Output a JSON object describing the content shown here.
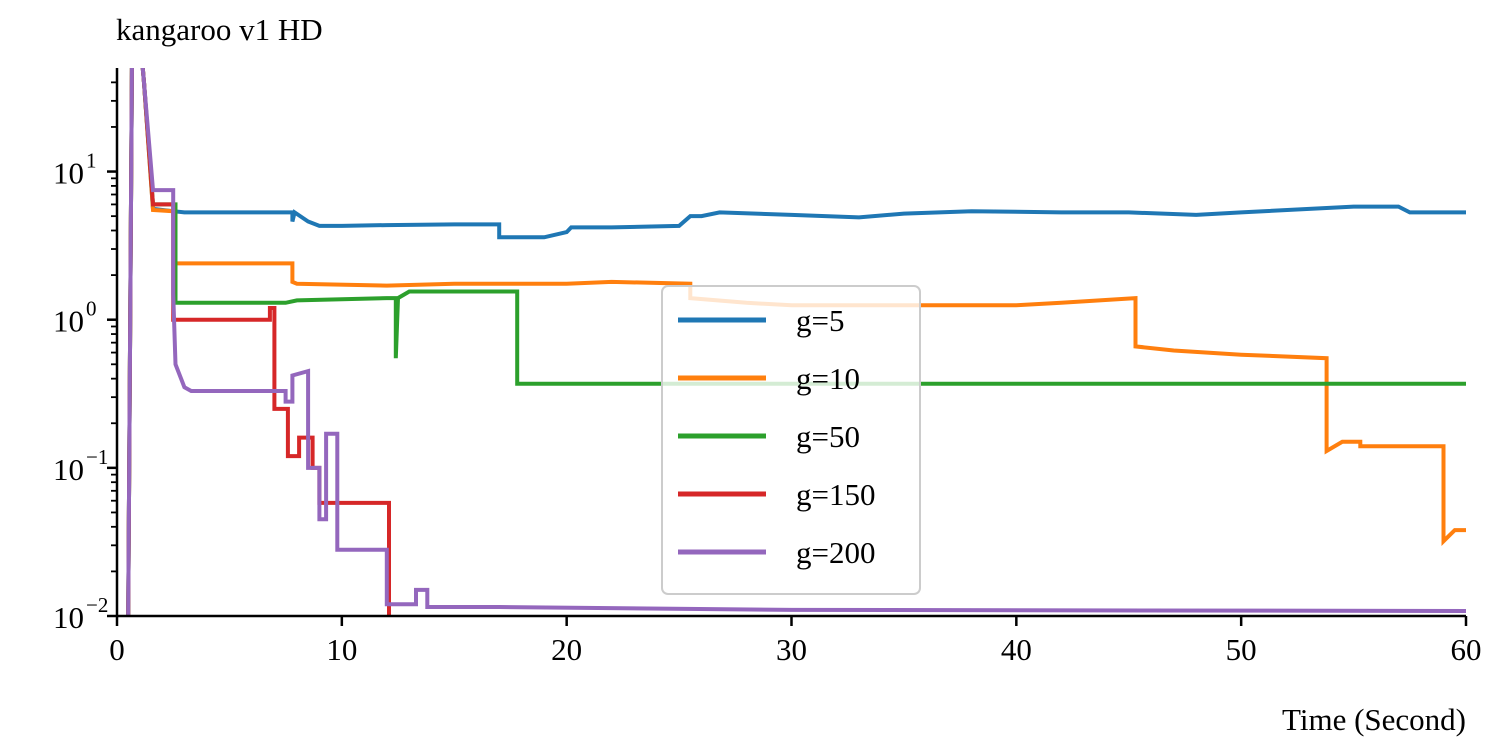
{
  "chart_data": {
    "type": "line",
    "title": "kangaroo v1 HD",
    "xlabel": "Time (Second)",
    "ylabel": "",
    "xlim": [
      0,
      60
    ],
    "ylim": [
      0.01,
      50
    ],
    "yscale": "log",
    "grid": false,
    "legend_position": "center",
    "x_ticks": [
      0,
      10,
      20,
      30,
      40,
      50,
      60
    ],
    "y_ticks": [
      {
        "value": 0.01,
        "base": "10",
        "exp": "−2"
      },
      {
        "value": 0.1,
        "base": "10",
        "exp": "−1"
      },
      {
        "value": 1,
        "base": "10",
        "exp": "0"
      },
      {
        "value": 10,
        "base": "10",
        "exp": "1"
      }
    ],
    "series": [
      {
        "name": "g=5",
        "color": "#1f77b4",
        "points": [
          [
            0.5,
            0.01
          ],
          [
            0.7,
            300
          ],
          [
            1.2,
            40
          ],
          [
            1.6,
            5.6
          ],
          [
            2.5,
            5.4
          ],
          [
            3,
            5.3
          ],
          [
            7.8,
            5.3
          ],
          [
            7.8,
            4.6
          ],
          [
            7.9,
            5.3
          ],
          [
            8.5,
            4.6
          ],
          [
            9,
            4.3
          ],
          [
            10,
            4.3
          ],
          [
            12,
            4.35
          ],
          [
            15,
            4.4
          ],
          [
            17,
            4.4
          ],
          [
            17,
            3.6
          ],
          [
            19,
            3.6
          ],
          [
            20,
            3.9
          ],
          [
            20.2,
            4.2
          ],
          [
            22,
            4.2
          ],
          [
            25,
            4.3
          ],
          [
            25.5,
            5
          ],
          [
            26,
            5
          ],
          [
            26.8,
            5.3
          ],
          [
            30,
            5.1
          ],
          [
            33,
            4.9
          ],
          [
            35,
            5.2
          ],
          [
            38,
            5.4
          ],
          [
            42,
            5.3
          ],
          [
            45,
            5.3
          ],
          [
            48,
            5.1
          ],
          [
            50,
            5.3
          ],
          [
            55,
            5.8
          ],
          [
            57,
            5.8
          ],
          [
            57.5,
            5.3
          ],
          [
            60,
            5.3
          ]
        ]
      },
      {
        "name": "g=10",
        "color": "#ff7f0e",
        "points": [
          [
            0.5,
            0.01
          ],
          [
            0.7,
            300
          ],
          [
            1.2,
            40
          ],
          [
            1.6,
            5.5
          ],
          [
            2.5,
            5.4
          ],
          [
            2.6,
            2.4
          ],
          [
            7.8,
            2.4
          ],
          [
            7.8,
            1.8
          ],
          [
            8,
            1.75
          ],
          [
            12,
            1.7
          ],
          [
            15,
            1.75
          ],
          [
            20,
            1.75
          ],
          [
            22,
            1.8
          ],
          [
            25.5,
            1.75
          ],
          [
            25.5,
            1.4
          ],
          [
            28,
            1.3
          ],
          [
            30,
            1.25
          ],
          [
            33,
            1.25
          ],
          [
            40,
            1.25
          ],
          [
            42,
            1.3
          ],
          [
            45.3,
            1.4
          ],
          [
            45.3,
            0.66
          ],
          [
            47,
            0.62
          ],
          [
            50,
            0.58
          ],
          [
            53.8,
            0.55
          ],
          [
            53.8,
            0.13
          ],
          [
            54.5,
            0.15
          ],
          [
            55.3,
            0.15
          ],
          [
            55.3,
            0.14
          ],
          [
            59,
            0.14
          ],
          [
            59,
            0.032
          ],
          [
            59.5,
            0.038
          ],
          [
            60,
            0.038
          ]
        ]
      },
      {
        "name": "g=50",
        "color": "#2ca02c",
        "points": [
          [
            0.5,
            0.01
          ],
          [
            0.7,
            300
          ],
          [
            1.2,
            40
          ],
          [
            1.6,
            6
          ],
          [
            2.6,
            6
          ],
          [
            2.6,
            1.3
          ],
          [
            7.5,
            1.3
          ],
          [
            8,
            1.35
          ],
          [
            12,
            1.4
          ],
          [
            12.4,
            1.4
          ],
          [
            12.4,
            0.55
          ],
          [
            12.5,
            1.4
          ],
          [
            13,
            1.55
          ],
          [
            17.8,
            1.55
          ],
          [
            17.8,
            0.37
          ],
          [
            60,
            0.37
          ]
        ]
      },
      {
        "name": "g=150",
        "color": "#d62728",
        "points": [
          [
            0.5,
            0.01
          ],
          [
            0.7,
            300
          ],
          [
            1.2,
            40
          ],
          [
            1.6,
            6
          ],
          [
            2.5,
            6
          ],
          [
            2.5,
            1
          ],
          [
            6.8,
            1
          ],
          [
            6.8,
            1.2
          ],
          [
            7,
            1.2
          ],
          [
            7,
            0.25
          ],
          [
            7.6,
            0.25
          ],
          [
            7.6,
            0.12
          ],
          [
            8.1,
            0.12
          ],
          [
            8.1,
            0.16
          ],
          [
            8.7,
            0.16
          ],
          [
            8.7,
            0.1
          ],
          [
            9,
            0.1
          ],
          [
            9,
            0.058
          ],
          [
            12.1,
            0.058
          ],
          [
            12.1,
            0.01
          ]
        ]
      },
      {
        "name": "g=200",
        "color": "#9467bd",
        "points": [
          [
            0.5,
            0.01
          ],
          [
            0.7,
            300
          ],
          [
            1.2,
            40
          ],
          [
            1.6,
            7.5
          ],
          [
            2.5,
            7.5
          ],
          [
            2.5,
            1.5
          ],
          [
            2.6,
            0.5
          ],
          [
            3,
            0.35
          ],
          [
            3.3,
            0.33
          ],
          [
            7.5,
            0.33
          ],
          [
            7.5,
            0.28
          ],
          [
            7.8,
            0.28
          ],
          [
            7.8,
            0.42
          ],
          [
            8.5,
            0.45
          ],
          [
            8.5,
            0.1
          ],
          [
            9,
            0.1
          ],
          [
            9,
            0.045
          ],
          [
            9.3,
            0.045
          ],
          [
            9.3,
            0.17
          ],
          [
            9.8,
            0.17
          ],
          [
            9.8,
            0.028
          ],
          [
            12,
            0.028
          ],
          [
            12,
            0.012
          ],
          [
            13.3,
            0.012
          ],
          [
            13.3,
            0.015
          ],
          [
            13.8,
            0.015
          ],
          [
            13.8,
            0.0115
          ],
          [
            17,
            0.0115
          ],
          [
            30,
            0.011
          ],
          [
            60,
            0.0108
          ]
        ]
      }
    ]
  }
}
